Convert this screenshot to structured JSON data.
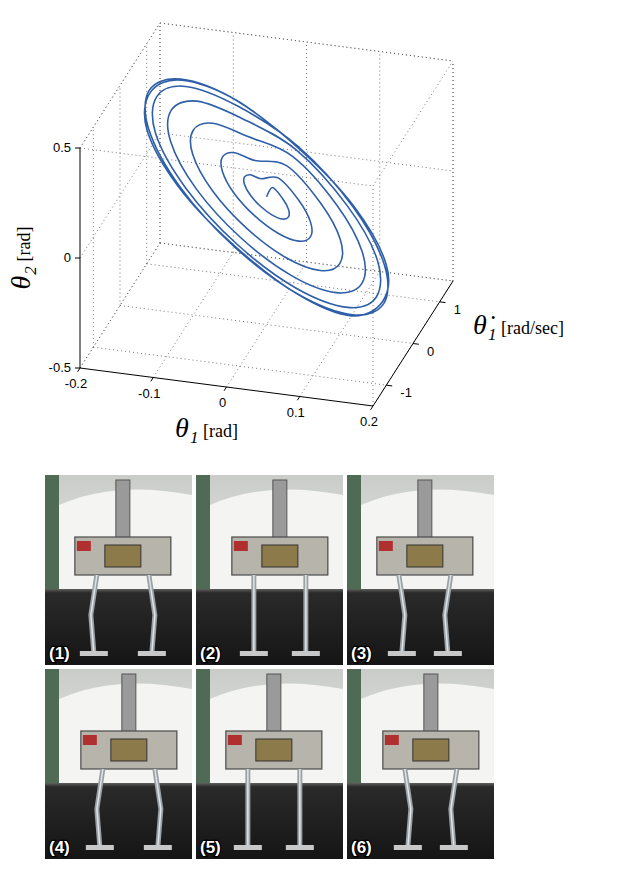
{
  "chart_data": {
    "type": "line3d",
    "x_label": "θ₁ [rad]",
    "y_label": "θ₂ [rad]",
    "z_label": "θ̇₁ [rad/sec]",
    "xlim": [
      -0.2,
      0.2
    ],
    "xticks": [
      -0.2,
      -0.1,
      0,
      0.1,
      0.2
    ],
    "ylim": [
      -0.5,
      0.5
    ],
    "yticks": [
      -0.5,
      0,
      0.5
    ],
    "zlim": [
      -1.5,
      1.5
    ],
    "zticks": [
      -1,
      0,
      1
    ],
    "grid": true,
    "series": [
      {
        "color": "#2f5fa8",
        "x": [
          0,
          0,
          0.015,
          0.026,
          0.03,
          0.026,
          0.015,
          0,
          -0.015,
          -0.026,
          -0.03,
          -0.026,
          -0.015,
          0,
          0.03,
          0.052,
          0.06,
          0.052,
          0.03,
          0,
          -0.03,
          -0.052,
          -0.06,
          -0.052,
          -0.03,
          0,
          0.05,
          0.087,
          0.1,
          0.087,
          0.05,
          0,
          -0.05,
          -0.087,
          -0.1,
          -0.087,
          -0.05,
          0,
          0.065,
          0.113,
          0.13,
          0.113,
          0.065,
          0,
          -0.065,
          -0.113,
          -0.13,
          -0.113,
          -0.065,
          0,
          0.075,
          0.131,
          0.15,
          0.131,
          0.075,
          0,
          -0.075,
          -0.131,
          -0.15,
          -0.131,
          -0.075,
          0,
          0.08,
          0.139,
          0.16,
          0.139,
          0.08,
          0,
          -0.08,
          -0.139,
          -0.16,
          -0.139,
          -0.08,
          0.004,
          0.082,
          0.141,
          0.158,
          0.137,
          0.078,
          -0.003,
          -0.082,
          -0.141,
          -0.158,
          -0.137,
          -0.078,
          0.002
        ],
        "z": [
          0,
          0.225,
          0.196,
          0.113,
          0,
          -0.113,
          -0.196,
          -0.225,
          -0.196,
          -0.113,
          0,
          0.113,
          0.196,
          0.45,
          0.392,
          0.225,
          0,
          -0.225,
          -0.392,
          -0.45,
          -0.392,
          -0.225,
          0,
          0.225,
          0.392,
          0.75,
          0.653,
          0.375,
          0,
          -0.375,
          -0.653,
          -0.75,
          -0.653,
          -0.375,
          0,
          0.375,
          0.653,
          0.975,
          0.848,
          0.488,
          0,
          -0.488,
          -0.848,
          -0.975,
          -0.848,
          -0.488,
          0,
          0.488,
          0.848,
          1.125,
          0.979,
          0.563,
          0,
          -0.563,
          -0.979,
          -1.125,
          -0.979,
          -0.563,
          0,
          0.563,
          0.979,
          1.2,
          1.044,
          0.6,
          0,
          -0.6,
          -1.044,
          -1.2,
          -1.044,
          -0.6,
          0,
          0.6,
          1.044,
          1.18,
          1.05,
          0.61,
          0.02,
          -0.59,
          -1.03,
          -1.19,
          -1.05,
          -0.61,
          -0.01,
          0.59,
          1.03,
          1.19
        ],
        "values": [
          0.08,
          0.08,
          0.041,
          0.012,
          0.002,
          0.012,
          0.041,
          0.08,
          0.119,
          0.148,
          0.158,
          0.148,
          0.119,
          0.08,
          0.002,
          -0.056,
          -0.076,
          -0.056,
          0.002,
          0.08,
          0.158,
          0.216,
          0.236,
          0.216,
          0.158,
          0.08,
          -0.05,
          -0.146,
          -0.18,
          -0.146,
          -0.05,
          0.08,
          0.21,
          0.306,
          0.34,
          0.306,
          0.21,
          0.08,
          -0.089,
          -0.214,
          -0.258,
          -0.214,
          -0.089,
          0.08,
          0.249,
          0.374,
          0.418,
          0.374,
          0.249,
          0.08,
          -0.115,
          -0.259,
          -0.31,
          -0.259,
          -0.115,
          0.08,
          0.275,
          0.419,
          0.47,
          0.419,
          0.275,
          0.08,
          -0.128,
          -0.282,
          -0.336,
          -0.282,
          -0.128,
          0.08,
          0.288,
          0.442,
          0.496,
          0.442,
          0.288,
          0.07,
          -0.13,
          -0.28,
          -0.33,
          -0.29,
          -0.13,
          0.09,
          0.29,
          0.44,
          0.49,
          0.44,
          0.29,
          0.08
        ]
      }
    ]
  },
  "photos": [
    "(1)",
    "(2)",
    "(3)",
    "(4)",
    "(5)",
    "(6)"
  ]
}
